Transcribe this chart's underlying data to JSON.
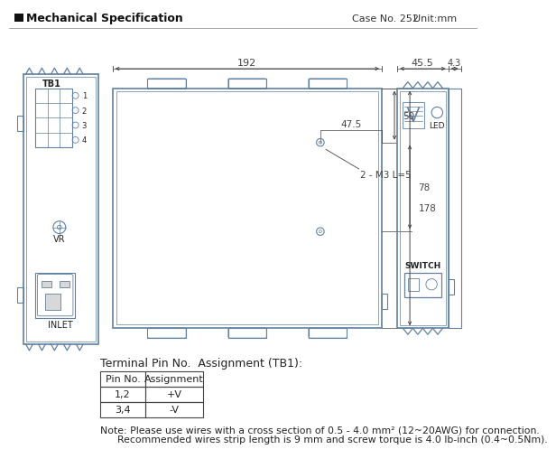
{
  "title": "Mechanical Specification",
  "case_no": "Case No. 252",
  "unit": "Unit:mm",
  "bg_color": "#ffffff",
  "line_color": "#6080a0",
  "dim_color": "#444444",
  "text_color": "#222222",
  "table_title": "Terminal Pin No.  Assignment (TB1):",
  "table_headers": [
    "Pin No.",
    "Assignment"
  ],
  "table_rows": [
    [
      "1,2",
      "+V"
    ],
    [
      "3,4",
      "-V"
    ]
  ],
  "note_line1": "Note: Please use wires with a cross section of 0.5 - 4.0 mm² (12~20AWG) for connection.",
  "note_line2": "Recommended wires strip length is 9 mm and screw torque is 4.0 lb-inch (0.4~0.5Nm).",
  "dim_192": "192",
  "dim_455": "45.5",
  "dim_43": "4.3",
  "dim_50": "50",
  "dim_475": "47.5",
  "dim_78": "78",
  "dim_178": "178",
  "dim_m3": "2 - M3 L=5"
}
